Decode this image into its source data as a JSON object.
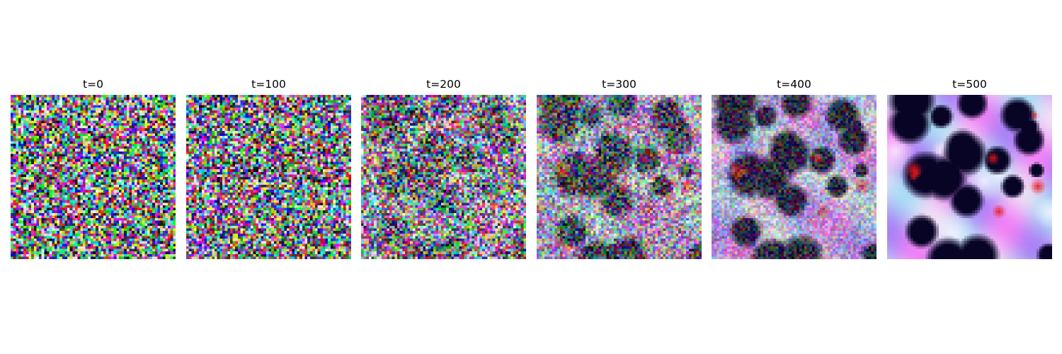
{
  "panels": [
    {
      "title": "t=0",
      "image": "pure random rgb noise"
    },
    {
      "title": "t=100",
      "image": "random rgb noise, slightly less saturated"
    },
    {
      "title": "t=200",
      "image": "noisy image with faint emerging structure"
    },
    {
      "title": "t=300",
      "image": "noise with dark blobs and light regions emerging"
    },
    {
      "title": "t=400",
      "image": "dark blobs and white/blue regions with residual noise"
    },
    {
      "title": "t=500",
      "image": "smooth abstract image of dark blobs on lavender/blue/pink/white background"
    }
  ],
  "colors": {
    "background": "#ffffff",
    "title_text": "#000000"
  }
}
